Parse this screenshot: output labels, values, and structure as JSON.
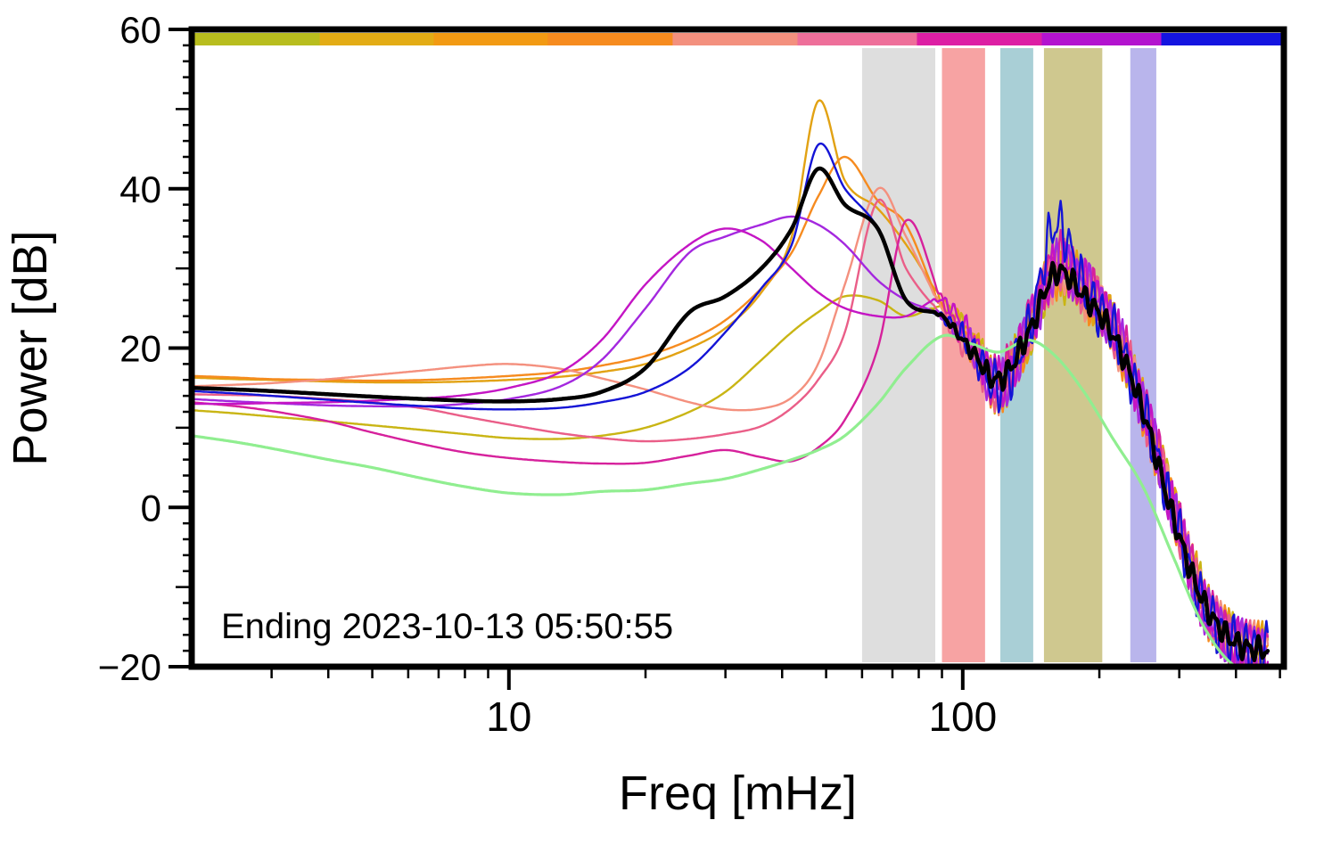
{
  "figure": {
    "annotation": "Ending 2023-10-13 05:50:55",
    "xlabel": "Freq [mHz]",
    "ylabel": "Power [dB]"
  },
  "chart_data": {
    "type": "line",
    "title": "",
    "xlabel": "Freq [mHz]",
    "ylabel": "Power [dB]",
    "x_scale": "log",
    "xlim": [
      2.0,
      510
    ],
    "ylim": [
      -20,
      60
    ],
    "grid": false,
    "legend": "none",
    "annotation": "Ending 2023-10-13 05:50:55",
    "x_ticks": [
      {
        "v": 10,
        "label": "10"
      },
      {
        "v": 100,
        "label": "100"
      }
    ],
    "x_minor_ticks": [
      3,
      4,
      5,
      6,
      7,
      8,
      9,
      20,
      30,
      40,
      50,
      60,
      70,
      80,
      90,
      200,
      300,
      400,
      500
    ],
    "y_ticks": [
      {
        "v": 60,
        "label": "60"
      },
      {
        "v": 40,
        "label": "40"
      },
      {
        "v": 20,
        "label": "20"
      },
      {
        "v": 0,
        "label": "0"
      },
      {
        "v": -20,
        "label": "−20"
      }
    ],
    "y_minor_step": 2,
    "bands_mHz": [
      {
        "name": "band-gray",
        "color": "#dedede",
        "x0": 60,
        "x1": 87
      },
      {
        "name": "band-red",
        "color": "#f7a3a3",
        "x0": 90,
        "x1": 112
      },
      {
        "name": "band-teal",
        "color": "#a9cfd6",
        "x0": 121,
        "x1": 143
      },
      {
        "name": "band-olive",
        "color": "#cfc88f",
        "x0": 151,
        "x1": 203
      },
      {
        "name": "band-lavender",
        "color": "#b9b5ec",
        "x0": 234,
        "x1": 267
      }
    ],
    "colorbar_segments": [
      {
        "color": "#b8bd1e",
        "frac": 0.115
      },
      {
        "color": "#e3ac15",
        "frac": 0.105
      },
      {
        "color": "#f29a13",
        "frac": 0.105
      },
      {
        "color": "#f68b1f",
        "frac": 0.115
      },
      {
        "color": "#f3907e",
        "frac": 0.115
      },
      {
        "color": "#ee6f9a",
        "frac": 0.11
      },
      {
        "color": "#dd1fa4",
        "frac": 0.115
      },
      {
        "color": "#b313cf",
        "frac": 0.11
      },
      {
        "color": "#1414e0",
        "frac": 0.11
      }
    ],
    "x_mHz": [
      2.0,
      2.5,
      3.0,
      4.0,
      5.0,
      6.5,
      8.0,
      10,
      13,
      16,
      20,
      25,
      30,
      36,
      42,
      48,
      55,
      65,
      75,
      90,
      105,
      120,
      140,
      160,
      185,
      215,
      250,
      290,
      340,
      400,
      470
    ],
    "series": [
      {
        "name": "olive",
        "color": "#c9b514",
        "width": 2.4,
        "noise": 2.4,
        "y": [
          12.2,
          11.8,
          11.4,
          10.8,
          10.3,
          9.7,
          9.2,
          8.7,
          8.6,
          9.0,
          10,
          12,
          14.5,
          18.5,
          22,
          24.5,
          26.5,
          26,
          24,
          25,
          21,
          15.5,
          22,
          29,
          27,
          22.5,
          12.5,
          0.5,
          -11.5,
          -17,
          -18
        ]
      },
      {
        "name": "goldenrod",
        "color": "#e2a213",
        "width": 2.4,
        "noise": 2.4,
        "y": [
          16.3,
          16.1,
          16,
          15.8,
          15.7,
          15.7,
          15.8,
          16,
          16.4,
          17,
          18,
          20,
          22.5,
          27,
          34,
          51,
          41,
          37.5,
          33,
          26,
          21,
          15,
          22,
          30,
          27.5,
          22.5,
          12.5,
          0.5,
          -11.5,
          -17,
          -18
        ]
      },
      {
        "name": "orange",
        "color": "#f68b1f",
        "width": 2.4,
        "noise": 2.4,
        "y": [
          16.5,
          16.3,
          16.1,
          16,
          15.9,
          16,
          16.2,
          16.5,
          17,
          17.8,
          19,
          21,
          23.5,
          27.5,
          32,
          39,
          44,
          38.5,
          35.5,
          25,
          20,
          15,
          22,
          29.5,
          27,
          22,
          12,
          0,
          -12,
          -17,
          -18
        ]
      },
      {
        "name": "salmon",
        "color": "#f4907e",
        "width": 2.4,
        "noise": 2.4,
        "y": [
          15.2,
          15.4,
          15.6,
          16.1,
          16.6,
          17.2,
          17.7,
          18,
          17.4,
          16.2,
          14.8,
          13.2,
          12.3,
          12.4,
          13.8,
          18,
          28,
          40,
          34,
          25,
          20,
          15,
          22,
          29.5,
          27,
          22,
          12,
          0,
          -12,
          -17,
          -18
        ]
      },
      {
        "name": "rose",
        "color": "#ea5e88",
        "width": 2.4,
        "noise": 2.4,
        "y": [
          14.2,
          14.1,
          14,
          13.6,
          13.2,
          12.4,
          11.4,
          10.4,
          9.3,
          8.7,
          8.3,
          8.6,
          9.2,
          10.2,
          12.5,
          16,
          22,
          38.5,
          30,
          24,
          19,
          15.5,
          22.5,
          30,
          27.5,
          22.5,
          12.5,
          0,
          -12,
          -17,
          -18
        ]
      },
      {
        "name": "deeppink",
        "color": "#d6219c",
        "width": 2.4,
        "noise": 2.4,
        "y": [
          13.2,
          12.7,
          12.1,
          10.8,
          9.4,
          7.9,
          6.9,
          6.2,
          5.7,
          5.5,
          5.6,
          6.5,
          7.2,
          6.3,
          5.8,
          7.5,
          11,
          20,
          36,
          26,
          19.5,
          16,
          23,
          31,
          28,
          23,
          13,
          0.5,
          -12,
          -17,
          -18
        ]
      },
      {
        "name": "violet",
        "color": "#a428df",
        "width": 2.4,
        "noise": 2.4,
        "y": [
          13.6,
          13.3,
          13.1,
          12.8,
          12.7,
          12.7,
          13,
          13.6,
          15.2,
          18.5,
          25,
          32,
          34,
          35.5,
          36.5,
          35.5,
          33,
          28.5,
          26,
          24,
          20,
          15,
          22,
          30,
          28,
          22.5,
          12.5,
          0,
          -12.5,
          -17,
          -18
        ]
      },
      {
        "name": "magenta",
        "color": "#c415c4",
        "width": 2.4,
        "noise": 2.4,
        "y": [
          13,
          13,
          13.1,
          13.2,
          13.4,
          13.7,
          14.1,
          15,
          17,
          21,
          28,
          33,
          35,
          33.5,
          30,
          27,
          25,
          24,
          24,
          26,
          21,
          15.5,
          22.5,
          30,
          28,
          22.5,
          12.5,
          0,
          -12.5,
          -17,
          -18
        ]
      },
      {
        "name": "blue",
        "color": "#1414d6",
        "width": 2.4,
        "noise": 2.4,
        "y": [
          14.6,
          14.3,
          14,
          13.5,
          13.1,
          12.7,
          12.4,
          12.3,
          12.5,
          13.2,
          14.5,
          17.5,
          22,
          27.5,
          33,
          45.5,
          40,
          35,
          26,
          24,
          20,
          15,
          22.5,
          35.5,
          27.5,
          22,
          12,
          -0.5,
          -12.5,
          -17,
          -18
        ]
      },
      {
        "name": "green",
        "color": "#90ee90",
        "width": 3.2,
        "noise": 0,
        "y": [
          9,
          8.2,
          7.4,
          6,
          5,
          3.6,
          2.6,
          1.8,
          1.6,
          2.0,
          2.2,
          3,
          3.6,
          4.8,
          6,
          7.2,
          9,
          13,
          17.5,
          21.5,
          20.5,
          19.5,
          21,
          19,
          14.5,
          8.5,
          2.5,
          -6,
          -15,
          -20,
          -20
        ]
      },
      {
        "name": "mean",
        "color": "#000000",
        "width": 4.5,
        "noise": 1.1,
        "y": [
          15,
          14.8,
          14.6,
          14.2,
          13.9,
          13.6,
          13.4,
          13.3,
          13.6,
          14.5,
          17.5,
          24.5,
          26.5,
          30,
          35,
          42.5,
          38,
          35,
          26,
          24,
          19.5,
          16,
          22,
          29.5,
          26.5,
          21.5,
          12,
          -1,
          -12,
          -17,
          -18
        ]
      }
    ]
  }
}
